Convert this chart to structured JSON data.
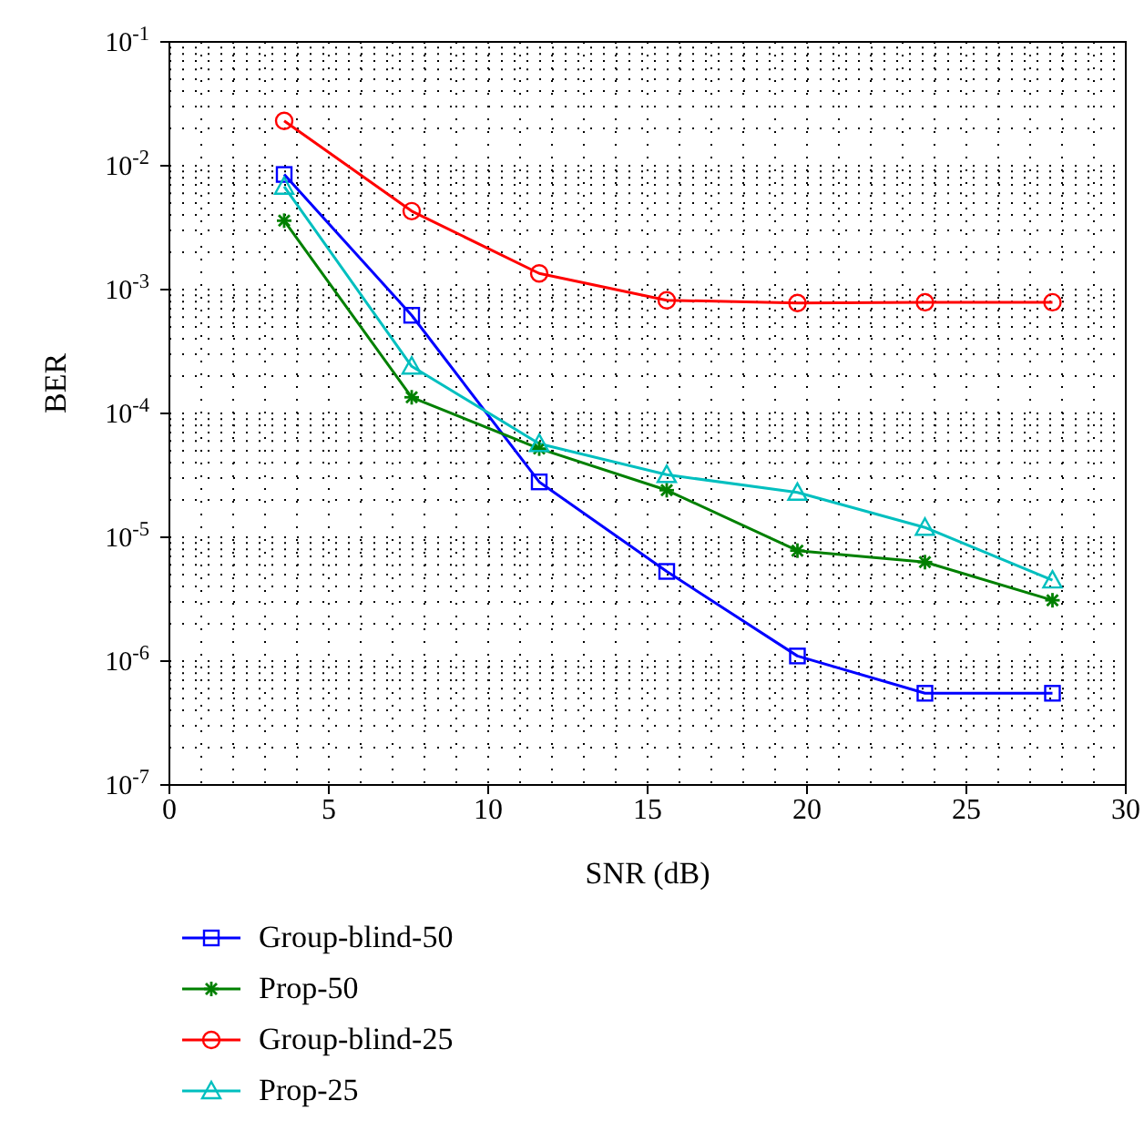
{
  "chart_data": {
    "type": "line",
    "xlabel": "SNR (dB)",
    "ylabel": "BER",
    "log": "y",
    "grid": true,
    "legend": "bottom",
    "line_style": "solid",
    "x": [
      3.6,
      7.6,
      11.6,
      15.6,
      19.7,
      23.7,
      27.7
    ],
    "xlim": [
      0,
      30
    ],
    "xticks": [
      0,
      5,
      10,
      15,
      20,
      25,
      30
    ],
    "ylim": [
      1e-07,
      0.1
    ],
    "yticks": [
      {
        "value": 1e-07,
        "label": "10$^{-7}$"
      },
      {
        "value": 1e-06,
        "label": "10$^{-6}$"
      },
      {
        "value": 1e-05,
        "label": "10$^{-5}$"
      },
      {
        "value": 0.0001,
        "label": "10$^{-4}$"
      },
      {
        "value": 0.001,
        "label": "10$^{-3}$"
      },
      {
        "value": 0.01,
        "label": "10$^{-2}$"
      },
      {
        "value": 0.1,
        "label": "10$^{-1}$"
      }
    ],
    "series": [
      {
        "name": "Group-blind-50",
        "color": "#0000ff",
        "marker": "square",
        "values": [
          0.0085,
          0.00062,
          2.8e-05,
          5.3e-06,
          1.1e-06,
          5.5e-07,
          5.5e-07
        ]
      },
      {
        "name": "Prop-50",
        "color": "#008000",
        "marker": "cross",
        "values": [
          0.0036,
          0.000135,
          5.2e-05,
          2.4e-05,
          7.8e-06,
          6.3e-06,
          3.1e-06
        ]
      },
      {
        "name": "Group-blind-25",
        "color": "#ff0000",
        "marker": "circle",
        "values": [
          0.023,
          0.0043,
          0.00135,
          0.00082,
          0.00078,
          0.00079,
          0.00079
        ]
      },
      {
        "name": "Prop-25",
        "color": "#00bfbf",
        "marker": "triangle",
        "values": [
          0.0068,
          0.00024,
          5.7e-05,
          3.2e-05,
          2.3e-05,
          1.2e-05,
          4.5e-06
        ]
      }
    ]
  }
}
